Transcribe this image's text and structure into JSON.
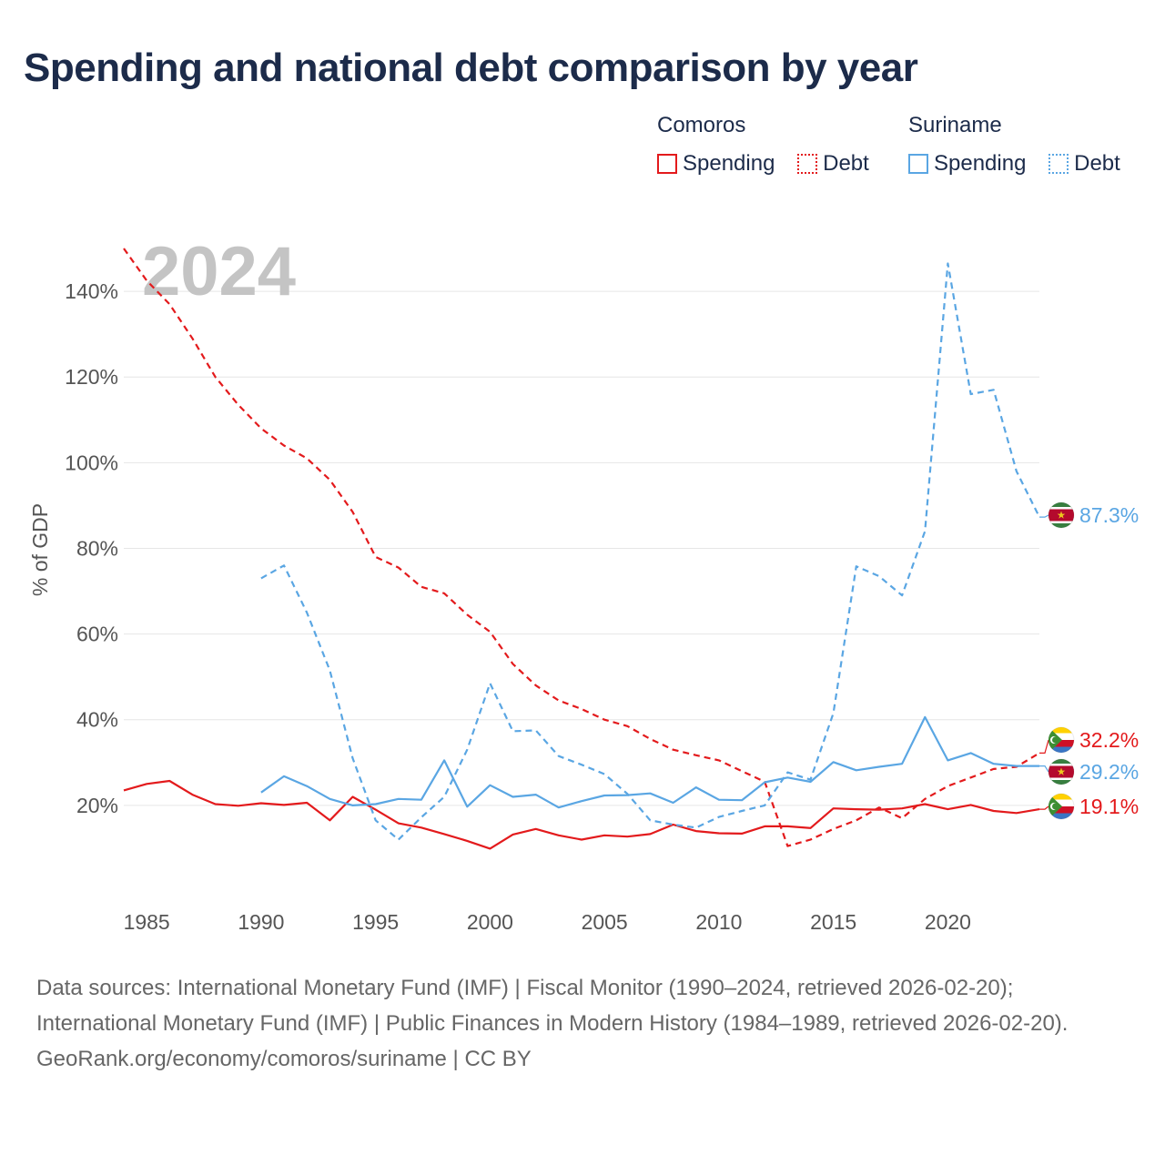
{
  "title": "Spending and national debt comparison by year",
  "year_label": "2024",
  "legend": {
    "groups": [
      {
        "name": "Comoros",
        "color": "#e31a1c",
        "items": [
          "Spending",
          "Debt"
        ]
      },
      {
        "name": "Suriname",
        "color": "#5aa6e3",
        "items": [
          "Spending",
          "Debt"
        ]
      }
    ]
  },
  "footer": {
    "sources": "Data sources: International Monetary Fund (IMF) | Fiscal Monitor (1990–2024, retrieved 2026-02-20); International Monetary Fund (IMF) | Public Finances in Modern History (1984–1989, retrieved 2026-02-20).",
    "credit": "GeoRank.org/economy/comoros/suriname | CC BY"
  },
  "chart_data": {
    "type": "line",
    "title": "Spending and national debt comparison by year",
    "ylabel": "% of GDP",
    "xlabel": "",
    "xlim": [
      1984,
      2024
    ],
    "ylim": [
      0,
      150
    ],
    "xticks": [
      1985,
      1990,
      1995,
      2000,
      2005,
      2010,
      2015,
      2020
    ],
    "yticks": [
      20,
      40,
      60,
      80,
      100,
      120,
      140
    ],
    "tick_suffix": "%",
    "grid": true,
    "end_labels": [
      {
        "text": "87.3%",
        "series": "Suriname Debt",
        "color": "#5aa6e3",
        "flag": "suriname-flag-icon"
      },
      {
        "text": "32.2%",
        "series": "Comoros Debt",
        "color": "#e31a1c",
        "flag": "comoros-flag-icon"
      },
      {
        "text": "29.2%",
        "series": "Suriname Spending",
        "color": "#5aa6e3",
        "flag": "suriname-flag-icon"
      },
      {
        "text": "19.1%",
        "series": "Comoros Spending",
        "color": "#e31a1c",
        "flag": "comoros-flag-icon"
      }
    ],
    "series": [
      {
        "name": "Comoros Spending",
        "country": "Comoros",
        "kind": "Spending",
        "color": "#e31a1c",
        "dash": false,
        "start_year": 1984,
        "values": [
          23.5,
          25.0,
          25.7,
          22.5,
          20.3,
          19.9,
          20.5,
          20.1,
          20.6,
          16.5,
          22.0,
          19.0,
          15.8,
          14.8,
          13.3,
          11.7,
          9.9,
          13.2,
          14.5,
          13.0,
          12.0,
          13.0,
          12.7,
          13.3,
          15.5,
          14.0,
          13.5,
          13.4,
          15.1,
          15.1,
          14.7,
          19.3,
          19.1,
          19.0,
          19.3,
          20.3,
          19.1,
          20.1,
          18.7,
          18.2,
          19.1
        ]
      },
      {
        "name": "Comoros Debt",
        "country": "Comoros",
        "kind": "Debt",
        "color": "#e31a1c",
        "dash": true,
        "start_year": 1984,
        "values": [
          150.0,
          142.5,
          137.0,
          129.0,
          120.0,
          113.5,
          108.0,
          104.0,
          101.0,
          96.0,
          88.5,
          78.0,
          75.5,
          71.0,
          69.5,
          64.5,
          60.5,
          53.0,
          48.0,
          44.5,
          42.5,
          40.0,
          38.5,
          35.5,
          33.0,
          31.7,
          30.5,
          28.0,
          25.5,
          10.5,
          12.0,
          14.5,
          16.5,
          19.5,
          17.0,
          21.5,
          24.5,
          26.5,
          28.5,
          29.0,
          32.2
        ]
      },
      {
        "name": "Suriname Spending",
        "country": "Suriname",
        "kind": "Spending",
        "color": "#5aa6e3",
        "dash": false,
        "start_year": 1990,
        "values": [
          23.0,
          26.8,
          24.5,
          21.5,
          20.0,
          20.3,
          21.5,
          21.3,
          30.5,
          19.7,
          24.7,
          22.0,
          22.5,
          19.5,
          21.0,
          22.3,
          22.4,
          22.8,
          20.6,
          24.2,
          21.3,
          21.2,
          25.4,
          26.5,
          25.5,
          30.1,
          28.2,
          29.0,
          29.7,
          40.6,
          30.5,
          32.2,
          29.7,
          29.2,
          29.2
        ]
      },
      {
        "name": "Suriname Debt",
        "country": "Suriname",
        "kind": "Debt",
        "color": "#5aa6e3",
        "dash": true,
        "start_year": 1990,
        "values": [
          73.0,
          76.0,
          65.0,
          51.5,
          31.0,
          16.5,
          12.0,
          17.2,
          22.0,
          33.0,
          48.5,
          37.3,
          37.5,
          31.5,
          29.5,
          27.3,
          22.7,
          16.5,
          15.5,
          14.8,
          17.3,
          18.7,
          20.0,
          27.7,
          26.0,
          41.5,
          75.8,
          73.5,
          69.0,
          84.0,
          146.5,
          116.0,
          117.0,
          98.0,
          87.3
        ]
      }
    ]
  }
}
